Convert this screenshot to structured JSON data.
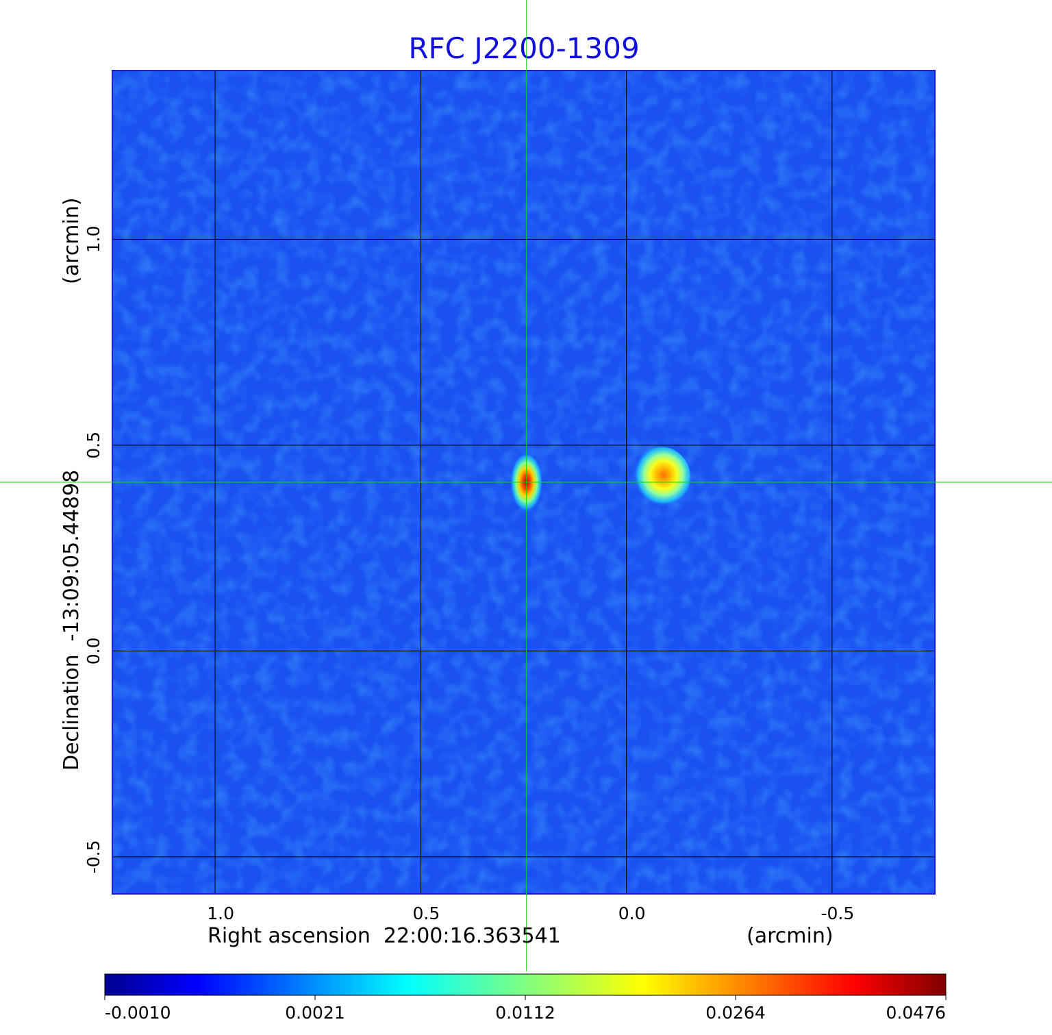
{
  "chart_data": {
    "type": "heatmap",
    "title": "RFC J2200-1309",
    "xlabel": "Right ascension  22:00:16.363541",
    "xunit": "(arcmin)",
    "ylabel": "Declination  -13:09:05.44898",
    "yunit": "(arcmin)",
    "xlim": [
      1.25,
      -0.75
    ],
    "ylim": [
      -0.59,
      1.41
    ],
    "x_ticks": [
      1.0,
      0.5,
      0.0,
      -0.5
    ],
    "x_tick_labels": [
      "1.0",
      "0.5",
      "0.0",
      "-0.5"
    ],
    "y_ticks": [
      1.0,
      0.5,
      0.0,
      -0.5
    ],
    "y_tick_labels": [
      "1.0",
      "0.5",
      "0.0",
      "-0.5"
    ],
    "grid": true,
    "crosshair": {
      "x": 0.243,
      "y": 0.41,
      "color": "#00dd00"
    },
    "sources": [
      {
        "x": 0.243,
        "y": 0.41,
        "peak": 0.0476
      },
      {
        "x": -0.083,
        "y": 0.42,
        "peak": 0.026
      }
    ],
    "colorbar": {
      "colormap": "jet",
      "tick_labels": [
        "-0.0010",
        "0.0021",
        "0.0112",
        "0.0264",
        "0.0476"
      ]
    }
  }
}
